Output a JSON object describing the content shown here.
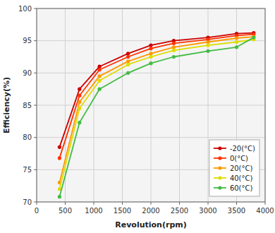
{
  "chart_data": {
    "type": "line",
    "xlabel": "Revolution(rpm)",
    "ylabel": "Efficiency(%)",
    "x": [
      400,
      750,
      1100,
      1600,
      2000,
      2400,
      3000,
      3500,
      3800
    ],
    "xlim": [
      0,
      4000
    ],
    "ylim": [
      70,
      100
    ],
    "xticks": [
      0,
      500,
      1000,
      1500,
      2000,
      2500,
      3000,
      3500,
      4000
    ],
    "yticks": [
      70,
      75,
      80,
      85,
      90,
      95,
      100
    ],
    "grid": true,
    "legend": "lower right",
    "series": [
      {
        "name": "-20(°C)",
        "color": "#cc0000",
        "marker": "circle",
        "values": [
          78.5,
          87.5,
          91.0,
          93.0,
          94.3,
          95.0,
          95.5,
          96.1,
          96.2
        ]
      },
      {
        "name": "0(°C)",
        "color": "#ff3300",
        "marker": "circle",
        "values": [
          76.8,
          86.5,
          90.5,
          92.5,
          93.8,
          94.6,
          95.2,
          95.8,
          96.0
        ]
      },
      {
        "name": "20(°C)",
        "color": "#ff9900",
        "marker": "circle",
        "values": [
          73.0,
          85.5,
          89.5,
          91.8,
          93.0,
          94.0,
          94.8,
          95.4,
          95.6
        ]
      },
      {
        "name": "40(°C)",
        "color": "#dddd00",
        "marker": "circle",
        "values": [
          72.0,
          84.5,
          88.8,
          91.3,
          92.5,
          93.5,
          94.3,
          94.8,
          95.2
        ]
      },
      {
        "name": "60(°C)",
        "color": "#44bb44",
        "marker": "circle",
        "values": [
          70.8,
          82.3,
          87.5,
          90.0,
          91.5,
          92.5,
          93.4,
          94.0,
          95.5
        ]
      }
    ]
  }
}
